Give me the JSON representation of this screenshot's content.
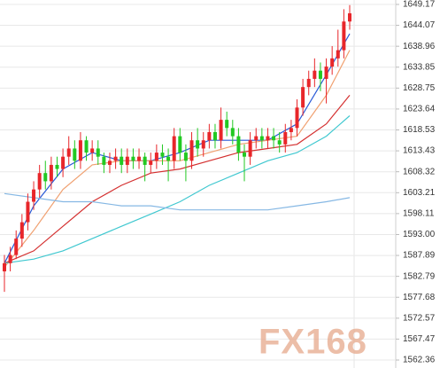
{
  "chart_data": {
    "type": "candlestick",
    "watermark": "FX168",
    "up_color": "#e8262a",
    "down_color": "#22c922",
    "open": [
      1584,
      1586,
      1588,
      1592,
      1596,
      1601,
      1604,
      1608,
      1606,
      1610,
      1609,
      1612,
      1614,
      1611,
      1616,
      1613,
      1614,
      1612,
      1610,
      1611,
      1612,
      1610,
      1612,
      1611,
      1612,
      1610,
      1611,
      1613,
      1612,
      1611,
      1617,
      1613,
      1611,
      1616,
      1614,
      1616,
      1618,
      1616,
      1621,
      1619,
      1617,
      1613,
      1612,
      1616,
      1617,
      1616,
      1617,
      1616,
      1615,
      1618,
      1619,
      1624,
      1629,
      1631,
      1633,
      1631,
      1634,
      1636,
      1638,
      1645
    ],
    "high": [
      1588,
      1590,
      1594,
      1598,
      1603,
      1606,
      1610,
      1611,
      1612,
      1612,
      1614,
      1617,
      1616,
      1618,
      1617,
      1616,
      1616,
      1613,
      1613,
      1614,
      1614,
      1614,
      1614,
      1614,
      1613,
      1613,
      1615,
      1615,
      1614,
      1619,
      1619,
      1615,
      1618,
      1619,
      1618,
      1620,
      1620,
      1624,
      1623,
      1621,
      1619,
      1615,
      1618,
      1619,
      1619,
      1619,
      1619,
      1618,
      1620,
      1621,
      1626,
      1631,
      1633,
      1636,
      1635,
      1636,
      1639,
      1643,
      1648,
      1649
    ],
    "low": [
      1579,
      1584,
      1587,
      1590,
      1594,
      1599,
      1602,
      1604,
      1604,
      1607,
      1607,
      1610,
      1609,
      1609,
      1611,
      1611,
      1610,
      1608,
      1608,
      1609,
      1608,
      1608,
      1609,
      1609,
      1606,
      1608,
      1609,
      1610,
      1606,
      1609,
      1611,
      1606,
      1609,
      1612,
      1612,
      1614,
      1614,
      1614,
      1617,
      1615,
      1611,
      1606,
      1610,
      1614,
      1614,
      1614,
      1614,
      1613,
      1613,
      1616,
      1617,
      1622,
      1627,
      1629,
      1628,
      1625,
      1632,
      1634,
      1636,
      1643
    ],
    "close": [
      1586,
      1588,
      1592,
      1596,
      1601,
      1604,
      1608,
      1606,
      1610,
      1609,
      1612,
      1614,
      1611,
      1616,
      1613,
      1614,
      1612,
      1610,
      1611,
      1612,
      1610,
      1612,
      1611,
      1612,
      1610,
      1611,
      1613,
      1612,
      1611,
      1617,
      1613,
      1611,
      1616,
      1614,
      1616,
      1618,
      1616,
      1621,
      1619,
      1617,
      1613,
      1612,
      1616,
      1617,
      1616,
      1617,
      1616,
      1615,
      1618,
      1619,
      1624,
      1629,
      1631,
      1633,
      1631,
      1634,
      1636,
      1638,
      1645,
      1647
    ],
    "lines": [
      {
        "color": "#2a5bd7",
        "x": [
          0,
          5,
          10,
          15,
          20,
          25,
          30,
          35,
          40,
          45,
          50,
          55,
          59
        ],
        "values": [
          1586,
          1600,
          1609,
          1613,
          1611,
          1611,
          1613,
          1616,
          1616,
          1616,
          1620,
          1632,
          1642
        ]
      },
      {
        "color": "#f0a070",
        "x": [
          0,
          5,
          10,
          15,
          20,
          25,
          30,
          35,
          40,
          45,
          50,
          55,
          59
        ],
        "values": [
          1585,
          1594,
          1604,
          1610,
          1611,
          1611,
          1611,
          1613,
          1615,
          1616,
          1617,
          1627,
          1638
        ]
      },
      {
        "color": "#d43030",
        "x": [
          0,
          5,
          10,
          15,
          20,
          25,
          30,
          35,
          40,
          45,
          50,
          55,
          59
        ],
        "values": [
          1586,
          1589,
          1595,
          1601,
          1605,
          1608,
          1609,
          1611,
          1613,
          1614,
          1615,
          1620,
          1627
        ]
      },
      {
        "color": "#40c8d0",
        "x": [
          0,
          5,
          10,
          15,
          20,
          25,
          30,
          35,
          40,
          45,
          50,
          55,
          59
        ],
        "values": [
          1586,
          1587,
          1589,
          1592,
          1595,
          1598,
          1601,
          1605,
          1608,
          1611,
          1613,
          1617,
          1622
        ]
      },
      {
        "color": "#86b8e4",
        "x": [
          0,
          5,
          10,
          15,
          20,
          25,
          30,
          35,
          40,
          45,
          50,
          55,
          59
        ],
        "values": [
          1603,
          1602,
          1601,
          1601,
          1600,
          1600,
          1599,
          1599,
          1599,
          1599,
          1600,
          1601,
          1602
        ]
      }
    ],
    "ylim": [
      1562.36,
      1649.17
    ],
    "yticks": [
      1649.17,
      1644.07,
      1638.96,
      1633.85,
      1628.75,
      1623.64,
      1618.53,
      1613.43,
      1608.32,
      1603.21,
      1598.11,
      {
        "value": 1593,
        "label": "1593.00"
      },
      1587.89,
      1582.79,
      1577.68,
      1572.57,
      1567.47,
      1562.36
    ],
    "grid": true
  }
}
